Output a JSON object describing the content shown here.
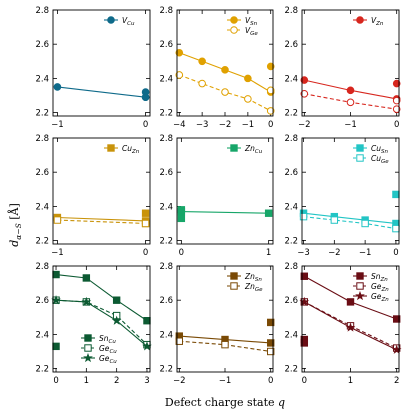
{
  "xlabel": "Defect charge state q",
  "ylabel": "d α−S [Å]",
  "chart_data": [
    {
      "type": "line",
      "ylim": [
        2.18,
        2.8
      ],
      "yticks": [
        2.2,
        2.4,
        2.6,
        2.8
      ],
      "xlim": [
        -1.05,
        0.05
      ],
      "xticks": [
        -1,
        0
      ],
      "series": [
        {
          "name": "V_Cu",
          "color": "#0e6a8a",
          "style": "solid",
          "marker": "circle",
          "filled": true,
          "x": [
            -1,
            0
          ],
          "y": [
            2.35,
            2.29
          ],
          "extra": [
            {
              "x": 0,
              "y": 2.32
            },
            {
              "x": 0,
              "y": 2.29
            }
          ]
        }
      ]
    },
    {
      "type": "line",
      "ylim": [
        2.18,
        2.8
      ],
      "yticks": [
        2.2,
        2.4,
        2.6,
        2.8
      ],
      "xlim": [
        -4.1,
        0.1
      ],
      "xticks": [
        -4,
        -3,
        -2,
        -1,
        0
      ],
      "series": [
        {
          "name": "V_Sn",
          "color": "#e0a100",
          "style": "solid",
          "marker": "circle",
          "filled": true,
          "x": [
            -4,
            -3,
            -2,
            -1,
            0
          ],
          "y": [
            2.55,
            2.5,
            2.45,
            2.4,
            2.32
          ],
          "extra": [
            {
              "x": 0,
              "y": 2.47
            }
          ]
        },
        {
          "name": "V_Ge",
          "color": "#e0a100",
          "style": "dashed",
          "marker": "circle",
          "filled": false,
          "x": [
            -4,
            -3,
            -2,
            -1,
            0
          ],
          "y": [
            2.42,
            2.37,
            2.32,
            2.28,
            2.21
          ],
          "extra": [
            {
              "x": 0,
              "y": 2.33
            }
          ]
        }
      ]
    },
    {
      "type": "line",
      "ylim": [
        2.18,
        2.8
      ],
      "yticks": [
        2.2,
        2.4,
        2.6,
        2.8
      ],
      "xlim": [
        -2.05,
        0.05
      ],
      "xticks": [
        -2,
        -1,
        0
      ],
      "series": [
        {
          "name": "V_Zn",
          "color": "#d7261e",
          "style": "solid",
          "marker": "circle",
          "filled": true,
          "x": [
            -2,
            -1,
            0
          ],
          "y": [
            2.39,
            2.33,
            2.28
          ],
          "extra": [
            {
              "x": 0,
              "y": 2.37
            }
          ]
        },
        {
          "name": "",
          "color": "#d7261e",
          "style": "dashed",
          "marker": "circle",
          "filled": false,
          "x": [
            -2,
            -1,
            0
          ],
          "y": [
            2.31,
            2.26,
            2.22
          ],
          "extra": [
            {
              "x": 0,
              "y": 2.27
            }
          ]
        }
      ]
    },
    {
      "type": "line",
      "ylim": [
        2.18,
        2.8
      ],
      "yticks": [
        2.2,
        2.4,
        2.6,
        2.8
      ],
      "xlim": [
        -1.05,
        0.05
      ],
      "xticks": [
        -1,
        0
      ],
      "series": [
        {
          "name": "Cu_Zn",
          "color": "#c9930a",
          "style": "solid",
          "marker": "square",
          "filled": true,
          "x": [
            -1,
            0
          ],
          "y": [
            2.335,
            2.315
          ],
          "extra": [
            {
              "x": 0,
              "y": 2.36
            },
            {
              "x": 0,
              "y": 2.3
            }
          ]
        },
        {
          "name": "",
          "color": "#c9930a",
          "style": "dashed",
          "marker": "square",
          "filled": false,
          "x": [
            -1,
            0
          ],
          "y": [
            2.32,
            2.3
          ],
          "extra": []
        }
      ]
    },
    {
      "type": "line",
      "ylim": [
        2.18,
        2.8
      ],
      "yticks": [
        2.2,
        2.4,
        2.6,
        2.8
      ],
      "xlim": [
        -0.05,
        1.05
      ],
      "xticks": [
        0,
        1
      ],
      "series": [
        {
          "name": "Zn_Cu",
          "color": "#17a669",
          "style": "solid",
          "marker": "square",
          "filled": true,
          "x": [
            0,
            1
          ],
          "y": [
            2.37,
            2.36
          ],
          "extra": [
            {
              "x": 0,
              "y": 2.38
            },
            {
              "x": 0,
              "y": 2.33
            }
          ]
        }
      ]
    },
    {
      "type": "line",
      "ylim": [
        2.18,
        2.8
      ],
      "yticks": [
        2.2,
        2.4,
        2.6,
        2.8
      ],
      "xlim": [
        -3.05,
        0.1
      ],
      "xticks": [
        -3,
        -2,
        -1,
        0
      ],
      "series": [
        {
          "name": "Cu_Sn",
          "color": "#22c5c5",
          "style": "solid",
          "marker": "square",
          "filled": true,
          "x": [
            -3,
            -2,
            -1,
            0
          ],
          "y": [
            2.36,
            2.34,
            2.32,
            2.3
          ],
          "extra": [
            {
              "x": 0,
              "y": 2.47
            }
          ]
        },
        {
          "name": "Cu_Ge",
          "color": "#22c5c5",
          "style": "dashed",
          "marker": "square",
          "filled": false,
          "x": [
            -3,
            -2,
            -1,
            0
          ],
          "y": [
            2.34,
            2.32,
            2.3,
            2.27
          ],
          "extra": []
        }
      ]
    },
    {
      "type": "line",
      "ylim": [
        2.18,
        2.8
      ],
      "yticks": [
        2.2,
        2.4,
        2.6,
        2.8
      ],
      "xlim": [
        -0.1,
        3.1
      ],
      "xticks": [
        0,
        1,
        2,
        3
      ],
      "series": [
        {
          "name": "Sn_Cu",
          "color": "#0c5a32",
          "style": "solid",
          "marker": "square",
          "filled": true,
          "x": [
            0,
            1,
            2,
            3
          ],
          "y": [
            2.75,
            2.73,
            2.6,
            2.48
          ],
          "extra": [
            {
              "x": 0,
              "y": 2.33
            }
          ]
        },
        {
          "name": "Ge_Cu",
          "color": "#0c5a32",
          "style": "dashed",
          "marker": "square",
          "filled": false,
          "x": [
            0,
            1,
            2,
            3
          ],
          "y": [
            2.6,
            2.59,
            2.51,
            2.34
          ],
          "extra": []
        },
        {
          "name": "Ge_Cu",
          "color": "#0c5a32",
          "style": "solid",
          "marker": "star",
          "filled": true,
          "x": [
            0,
            1,
            2,
            3
          ],
          "y": [
            2.6,
            2.59,
            2.48,
            2.33
          ],
          "extra": []
        }
      ]
    },
    {
      "type": "line",
      "ylim": [
        2.18,
        2.8
      ],
      "yticks": [
        2.2,
        2.4,
        2.6,
        2.8
      ],
      "xlim": [
        -2.05,
        0.05
      ],
      "xticks": [
        -2,
        -1,
        0
      ],
      "series": [
        {
          "name": "Zn_Sn",
          "color": "#7a4a05",
          "style": "solid",
          "marker": "square",
          "filled": true,
          "x": [
            -2,
            -1,
            0
          ],
          "y": [
            2.39,
            2.37,
            2.35
          ],
          "extra": [
            {
              "x": 0,
              "y": 2.47
            }
          ]
        },
        {
          "name": "Zn_Ge",
          "color": "#7a4a05",
          "style": "dashed",
          "marker": "square",
          "filled": false,
          "x": [
            -2,
            -1,
            0
          ],
          "y": [
            2.36,
            2.34,
            2.3
          ],
          "extra": []
        }
      ]
    },
    {
      "type": "line",
      "ylim": [
        2.18,
        2.8
      ],
      "yticks": [
        2.2,
        2.4,
        2.6,
        2.8
      ],
      "xlim": [
        -0.05,
        2.05
      ],
      "xticks": [
        0,
        1,
        2
      ],
      "series": [
        {
          "name": "Sn_Zn",
          "color": "#6a0d14",
          "style": "solid",
          "marker": "square",
          "filled": true,
          "x": [
            0,
            1,
            2
          ],
          "y": [
            2.74,
            2.59,
            2.49
          ],
          "extra": [
            {
              "x": 0,
              "y": 2.37
            },
            {
              "x": 0,
              "y": 2.35
            }
          ]
        },
        {
          "name": "Ge_Zn",
          "color": "#6a0d14",
          "style": "dashed",
          "marker": "square",
          "filled": false,
          "x": [
            0,
            1,
            2
          ],
          "y": [
            2.59,
            2.45,
            2.32
          ],
          "extra": []
        },
        {
          "name": "Ge_Zn",
          "color": "#6a0d14",
          "style": "solid",
          "marker": "star",
          "filled": true,
          "x": [
            0,
            1,
            2
          ],
          "y": [
            2.59,
            2.44,
            2.31
          ],
          "extra": []
        }
      ]
    }
  ]
}
